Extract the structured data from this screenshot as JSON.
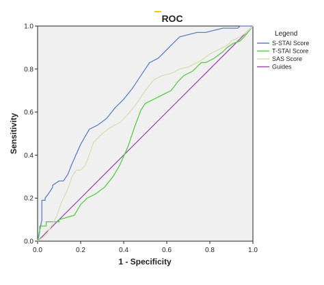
{
  "chart_data": {
    "type": "line",
    "title": "ROC",
    "xlabel": "1 - Specificity",
    "ylabel": "Sensitivity",
    "xlim": [
      0,
      1
    ],
    "ylim": [
      0,
      1
    ],
    "xticks": [
      "0.0",
      "0.2",
      "0.4",
      "0.6",
      "0.8",
      "1.0"
    ],
    "yticks": [
      "0.0",
      "0.2",
      "0.4",
      "0.6",
      "0.8",
      "1.0"
    ],
    "grid": false,
    "legend": {
      "title": "Legend",
      "placement": "right",
      "entries": [
        "S-STAI Score",
        "T-STAI Score",
        "SAS Score",
        "Guides"
      ]
    },
    "series": [
      {
        "name": "S-STAI Score",
        "color": "#5b7ec8",
        "x": [
          0.0,
          0.02,
          0.02,
          0.035,
          0.035,
          0.05,
          0.07,
          0.07,
          0.1,
          0.12,
          0.14,
          0.16,
          0.2,
          0.24,
          0.28,
          0.32,
          0.36,
          0.4,
          0.44,
          0.48,
          0.52,
          0.56,
          0.6,
          0.63,
          0.66,
          0.7,
          0.74,
          0.78,
          0.82,
          0.86,
          0.9,
          0.93,
          0.94,
          0.96,
          1.0
        ],
        "y": [
          0.0,
          0.1,
          0.19,
          0.19,
          0.2,
          0.22,
          0.25,
          0.26,
          0.28,
          0.28,
          0.31,
          0.36,
          0.45,
          0.52,
          0.54,
          0.57,
          0.62,
          0.66,
          0.71,
          0.77,
          0.83,
          0.85,
          0.89,
          0.92,
          0.95,
          0.96,
          0.97,
          0.97,
          0.98,
          0.99,
          0.99,
          0.99,
          1.0,
          1.0,
          1.0
        ]
      },
      {
        "name": "T-STAI Score",
        "color": "#55cc44",
        "x": [
          0.0,
          0.01,
          0.01,
          0.04,
          0.04,
          0.1,
          0.1,
          0.17,
          0.2,
          0.23,
          0.27,
          0.31,
          0.35,
          0.38,
          0.42,
          0.45,
          0.48,
          0.5,
          0.54,
          0.58,
          0.62,
          0.65,
          0.68,
          0.72,
          0.76,
          0.78,
          0.82,
          0.86,
          0.88,
          0.91,
          0.94,
          0.96,
          1.0
        ],
        "y": [
          0.0,
          0.04,
          0.07,
          0.07,
          0.09,
          0.09,
          0.1,
          0.12,
          0.17,
          0.2,
          0.22,
          0.25,
          0.3,
          0.35,
          0.44,
          0.53,
          0.61,
          0.64,
          0.66,
          0.68,
          0.7,
          0.74,
          0.77,
          0.79,
          0.83,
          0.83,
          0.85,
          0.88,
          0.9,
          0.92,
          0.93,
          0.95,
          1.0
        ]
      },
      {
        "name": "SAS Score",
        "color": "#d8dcae",
        "x": [
          0.0,
          0.04,
          0.07,
          0.09,
          0.11,
          0.14,
          0.16,
          0.18,
          0.2,
          0.22,
          0.24,
          0.26,
          0.28,
          0.3,
          0.34,
          0.38,
          0.42,
          0.46,
          0.5,
          0.54,
          0.58,
          0.62,
          0.66,
          0.7,
          0.72,
          0.76,
          0.8,
          0.84,
          0.88,
          0.9,
          0.94,
          0.97,
          1.0
        ],
        "y": [
          0.0,
          0.03,
          0.08,
          0.12,
          0.18,
          0.24,
          0.3,
          0.33,
          0.33,
          0.35,
          0.4,
          0.46,
          0.48,
          0.5,
          0.53,
          0.55,
          0.59,
          0.64,
          0.7,
          0.75,
          0.77,
          0.78,
          0.8,
          0.81,
          0.82,
          0.84,
          0.87,
          0.89,
          0.91,
          0.93,
          0.95,
          0.97,
          1.0
        ]
      },
      {
        "name": "Guides",
        "color": "#9b49b3",
        "x": [
          0.0,
          1.0
        ],
        "y": [
          0.0,
          1.0
        ]
      }
    ]
  }
}
